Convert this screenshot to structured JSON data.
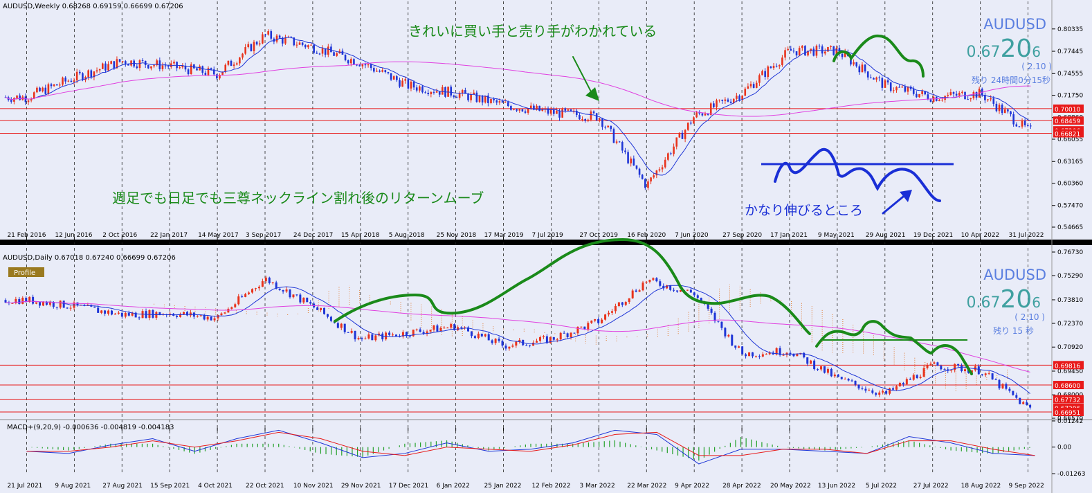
{
  "colors": {
    "background": "#e9ecf8",
    "bull": "#e8331c",
    "bear": "#1e35d6",
    "ma_fast": "#1e35d6",
    "ma_slow": "#e040e0",
    "level_line": "#e81a1a",
    "annotation_green": "#1a8a1a",
    "annotation_blue": "#1a2fd6",
    "macd_line": "#1e35d6",
    "signal_line": "#e81a1a",
    "histogram": "#23a02a",
    "ichimoku_cloud": "#e07a30",
    "price_text": "#3fa0a0"
  },
  "chart_data": [
    {
      "type": "candlestick",
      "panel": "weekly",
      "header": "AUDUSD,Weekly  0.68268 0.69159 0.66699 0.67206",
      "symbol": "AUDUSD",
      "price_big_prefix": "0.67",
      "price_big_main": "20",
      "price_big_sup": "6",
      "spread": "( 2.10 )",
      "remaining": "残り 24時間0分15秒",
      "ylim": [
        0.54665,
        0.8265
      ],
      "y_ticks": [
        "0.80335",
        "0.77445",
        "0.74555",
        "0.71750",
        "0.68860",
        "0.66055",
        "0.63165",
        "0.60360",
        "0.57470",
        "0.54665"
      ],
      "x_ticks": [
        "21 Feb 2016",
        "12 Jun 2016",
        "2 Oct 2016",
        "22 Jan 2017",
        "14 May 2017",
        "3 Sep 2017",
        "24 Dec 2017",
        "15 Apr 2018",
        "5 Aug 2018",
        "25 Nov 2018",
        "17 Mar 2019",
        "7 Jul 2019",
        "27 Oct 2019",
        "16 Feb 2020",
        "7 Jun 2020",
        "27 Sep 2020",
        "17 Jan 2021",
        "9 May 2021",
        "29 Aug 2021",
        "19 Dec 2021",
        "10 Apr 2022",
        "31 Jul 2022"
      ],
      "price_levels": [
        {
          "label": "0.70010",
          "value": 0.7001
        },
        {
          "label": "0.68459",
          "value": 0.68459
        },
        {
          "label": "0.67206",
          "value": 0.67206
        },
        {
          "label": "0.66821",
          "value": 0.66821
        }
      ],
      "close_path": [
        [
          "21 Feb 2016",
          0.715
        ],
        [
          "12 Jun 2016",
          0.74
        ],
        [
          "2 Oct 2016",
          0.762
        ],
        [
          "22 Jan 2017",
          0.755
        ],
        [
          "14 May 2017",
          0.745
        ],
        [
          "3 Sep 2017",
          0.795
        ],
        [
          "24 Dec 2017",
          0.78
        ],
        [
          "15 Apr 2018",
          0.76
        ],
        [
          "5 Aug 2018",
          0.73
        ],
        [
          "25 Nov 2018",
          0.72
        ],
        [
          "17 Mar 2019",
          0.705
        ],
        [
          "7 Jul 2019",
          0.695
        ],
        [
          "27 Oct 2019",
          0.69
        ],
        [
          "16 Feb 2020",
          0.6
        ],
        [
          "7 Jun 2020",
          0.69
        ],
        [
          "27 Sep 2020",
          0.72
        ],
        [
          "17 Jan 2021",
          0.775
        ],
        [
          "9 May 2021",
          0.775
        ],
        [
          "29 Aug 2021",
          0.73
        ],
        [
          "19 Dec 2021",
          0.715
        ],
        [
          "10 Apr 2022",
          0.72
        ],
        [
          "31 Jul 2022",
          0.672
        ]
      ],
      "annotations": [
        "きれいに買い手と売り手がわかれている",
        "週足でも日足でも三尊ネックライン割れ後のリターンムーブ",
        "かなり伸びるところ"
      ]
    },
    {
      "type": "candlestick",
      "panel": "daily",
      "header": "AUDUSD,Daily  0.67018 0.67240 0.66699 0.67206",
      "profile_label": "Profile",
      "symbol": "AUDUSD",
      "price_big_prefix": "0.67",
      "price_big_main": "20",
      "price_big_sup": "6",
      "spread": "( 2.10 )",
      "remaining": "残り 15 秒",
      "ylim": [
        0.6657,
        0.7673
      ],
      "y_ticks": [
        "0.76730",
        "0.75290",
        "0.73810",
        "0.72370",
        "0.70920",
        "0.69450",
        "0.68000",
        "0.66570"
      ],
      "x_ticks": [
        "21 Jul 2021",
        "9 Aug 2021",
        "27 Aug 2021",
        "15 Sep 2021",
        "4 Oct 2021",
        "22 Oct 2021",
        "10 Nov 2021",
        "29 Nov 2021",
        "17 Dec 2021",
        "6 Jan 2022",
        "25 Jan 2022",
        "12 Feb 2022",
        "3 Mar 2022",
        "22 Mar 2022",
        "9 Apr 2022",
        "28 Apr 2022",
        "20 May 2022",
        "13 Jun 2022",
        "5 Jul 2022",
        "27 Jul 2022",
        "18 Aug 2022",
        "9 Sep 2022"
      ],
      "price_levels": [
        {
          "label": "0.69816",
          "value": 0.69816
        },
        {
          "label": "0.68600",
          "value": 0.686
        },
        {
          "label": "0.67732",
          "value": 0.67732
        },
        {
          "label": "0.67206",
          "value": 0.67206
        },
        {
          "label": "0.66951",
          "value": 0.66951
        }
      ],
      "close_path": [
        [
          "21 Jul 2021",
          0.738
        ],
        [
          "9 Aug 2021",
          0.734
        ],
        [
          "27 Aug 2021",
          0.729
        ],
        [
          "15 Sep 2021",
          0.73
        ],
        [
          "4 Oct 2021",
          0.727
        ],
        [
          "22 Oct 2021",
          0.751
        ],
        [
          "10 Nov 2021",
          0.734
        ],
        [
          "29 Nov 2021",
          0.714
        ],
        [
          "17 Dec 2021",
          0.718
        ],
        [
          "6 Jan 2022",
          0.722
        ],
        [
          "25 Jan 2022",
          0.71
        ],
        [
          "12 Feb 2022",
          0.714
        ],
        [
          "3 Mar 2022",
          0.725
        ],
        [
          "22 Mar 2022",
          0.75
        ],
        [
          "9 Apr 2022",
          0.742
        ],
        [
          "28 Apr 2022",
          0.705
        ],
        [
          "20 May 2022",
          0.707
        ],
        [
          "13 Jun 2022",
          0.69
        ],
        [
          "5 Jul 2022",
          0.68
        ],
        [
          "27 Jul 2022",
          0.698
        ],
        [
          "18 Aug 2022",
          0.695
        ],
        [
          "9 Sep 2022",
          0.672
        ]
      ]
    },
    {
      "type": "line",
      "panel": "macd",
      "header": "MACD+(9,20,9) -0.000636 -0.004819 -0.004183",
      "ylim": [
        -0.0126,
        0.0124
      ],
      "y_ticks": [
        "0.01242",
        "0.00",
        "-0.01263"
      ],
      "series": [
        {
          "name": "MACD",
          "values": [
            -0.002,
            -0.003,
            0.001,
            0.004,
            -0.002,
            0.004,
            0.008,
            0.002,
            -0.005,
            -0.003,
            0.002,
            -0.002,
            -0.001,
            0.002,
            0.008,
            0.006,
            -0.008,
            -0.001,
            -0.001,
            -0.002,
            -0.003,
            0.005,
            0.002,
            -0.003,
            -0.004
          ]
        },
        {
          "name": "Signal",
          "values": [
            -0.002,
            -0.002,
            0.0,
            0.003,
            0.0,
            0.003,
            0.007,
            0.004,
            -0.002,
            -0.004,
            0.0,
            -0.001,
            -0.002,
            0.001,
            0.006,
            0.007,
            -0.004,
            -0.004,
            -0.001,
            -0.001,
            -0.003,
            0.003,
            0.003,
            -0.001,
            -0.004
          ]
        }
      ]
    }
  ]
}
